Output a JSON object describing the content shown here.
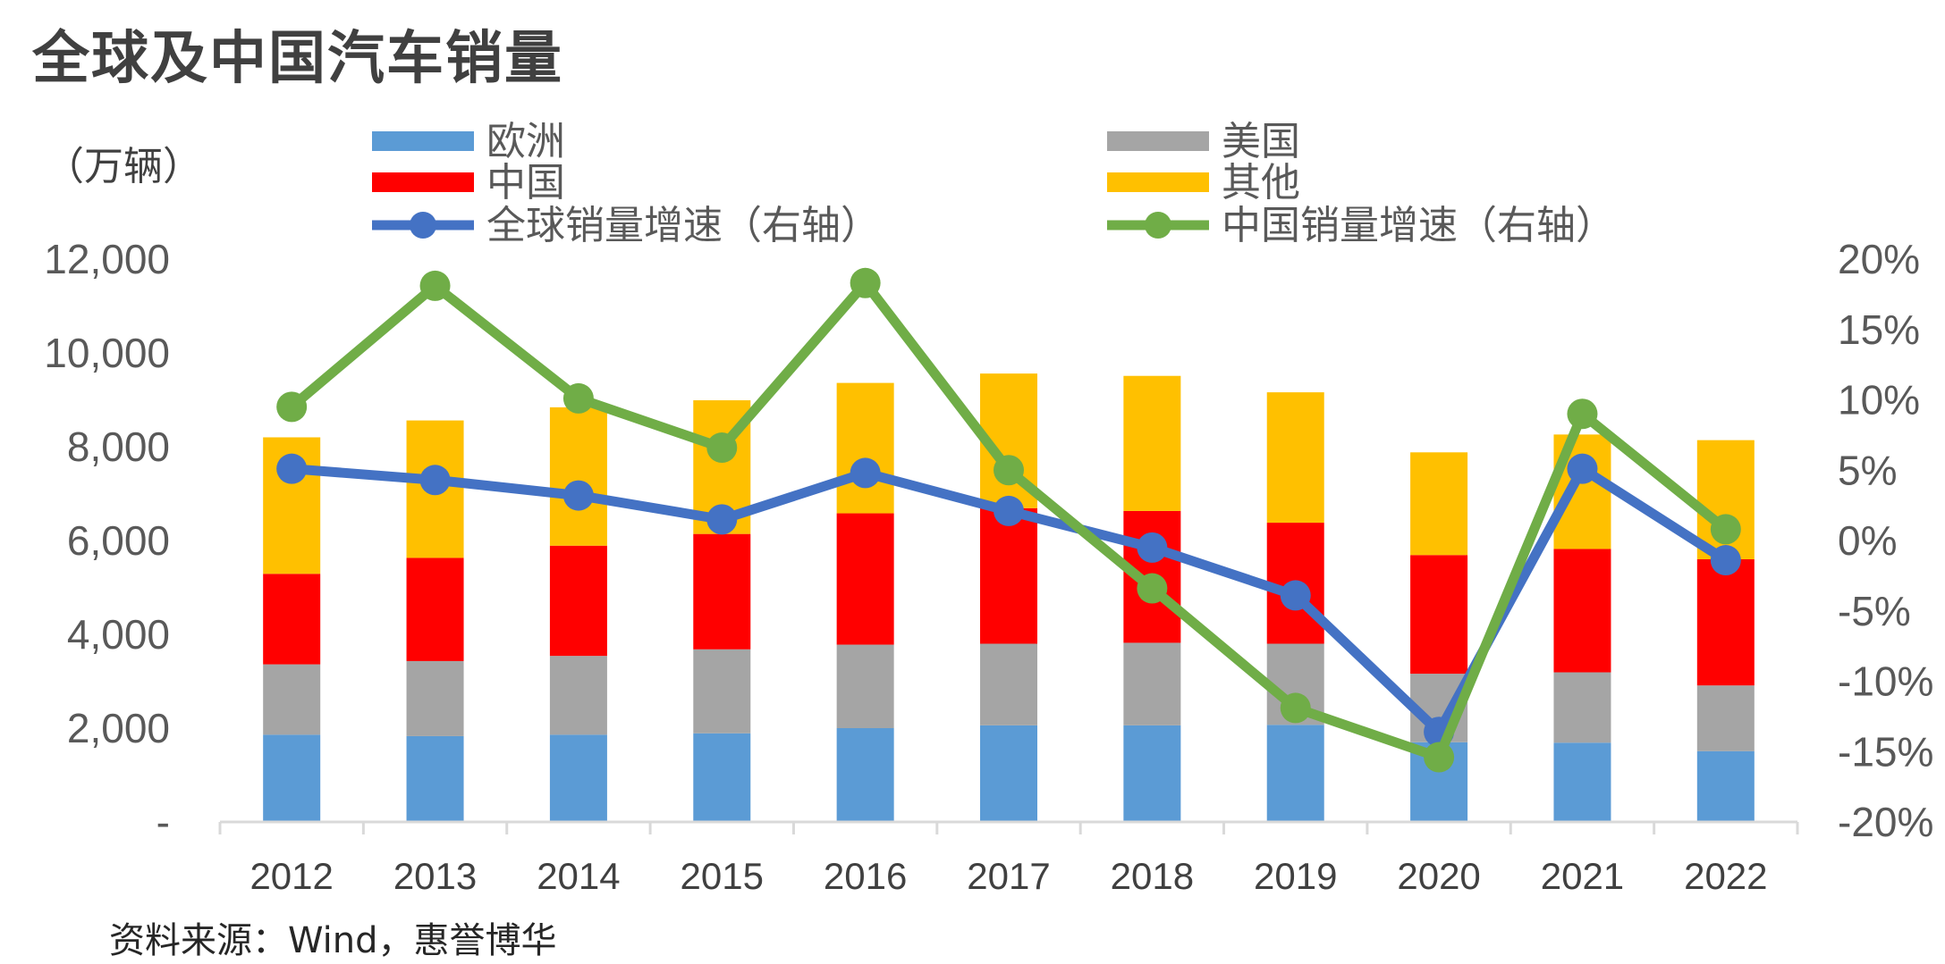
{
  "title": "全球及中国汽车销量",
  "unit_label": "（万辆）",
  "source": "资料来源：Wind，惠誉博华",
  "colors": {
    "europe": "#5B9BD5",
    "usa": "#A5A5A5",
    "china": "#FF0000",
    "other": "#FFC000",
    "global_growth": "#4472C4",
    "china_growth": "#70AD47"
  },
  "chart_data": {
    "type": "bar",
    "stacked": true,
    "categories": [
      "2012",
      "2013",
      "2014",
      "2015",
      "2016",
      "2017",
      "2018",
      "2019",
      "2020",
      "2021",
      "2022"
    ],
    "series": [
      {
        "name": "欧洲",
        "key": "europe",
        "values": [
          1860,
          1830,
          1860,
          1890,
          2000,
          2060,
          2060,
          2070,
          1700,
          1690,
          1510
        ]
      },
      {
        "name": "美国",
        "key": "usa",
        "values": [
          1500,
          1600,
          1680,
          1790,
          1780,
          1740,
          1760,
          1730,
          1460,
          1500,
          1400
        ]
      },
      {
        "name": "中国",
        "key": "china",
        "values": [
          1930,
          2200,
          2350,
          2460,
          2800,
          2890,
          2810,
          2580,
          2530,
          2630,
          2690
        ]
      },
      {
        "name": "其他",
        "key": "other",
        "values": [
          2910,
          2930,
          2950,
          2850,
          2780,
          2870,
          2880,
          2780,
          2190,
          2440,
          2540
        ]
      }
    ],
    "line_series": [
      {
        "name": "全球销量增速（右轴）",
        "key": "global_growth",
        "values": [
          5.1,
          4.3,
          3.2,
          1.5,
          4.8,
          2.1,
          -0.5,
          -3.9,
          -13.6,
          5.1,
          -1.4
        ]
      },
      {
        "name": "中国销量增速（右轴）",
        "key": "china_growth",
        "values": [
          9.5,
          18.1,
          10.1,
          6.6,
          18.3,
          5.0,
          -3.4,
          -11.9,
          -15.4,
          9.0,
          0.8
        ]
      }
    ],
    "ylim": [
      0,
      12000
    ],
    "yticks": [
      "-",
      "2,000",
      "4,000",
      "6,000",
      "8,000",
      "10,000",
      "12,000"
    ],
    "y2lim": [
      -20,
      20
    ],
    "y2ticks": [
      "-20%",
      "-15%",
      "-10%",
      "-5%",
      "0%",
      "5%",
      "10%",
      "15%",
      "20%"
    ],
    "legend_position": "top"
  }
}
